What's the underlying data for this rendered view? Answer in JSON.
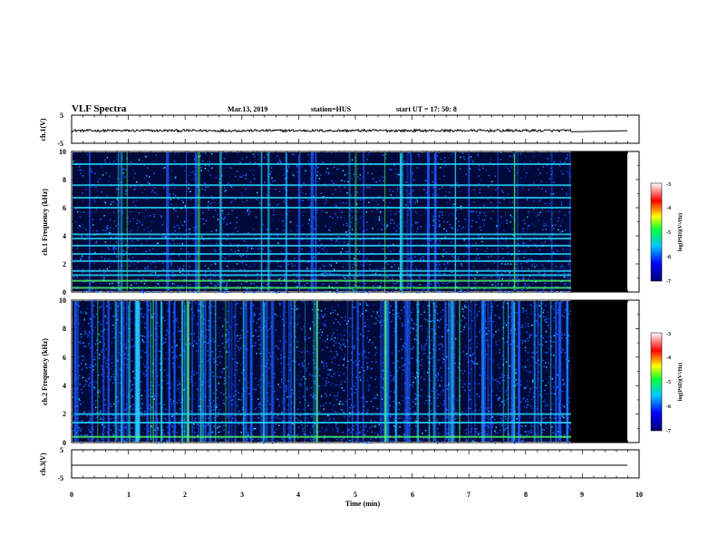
{
  "header": {
    "title": "VLF Spectra",
    "date": "Mar.13, 2019",
    "station": "station=HUS",
    "start": "start  UT  =   17: 50: 8"
  },
  "colors": {
    "low": "#000a3a",
    "mid": "#1a5cff",
    "high": "#27d8ff",
    "peak": "#4dff6a"
  },
  "chart_data": [
    {
      "type": "line",
      "panel": "ch1-voltage",
      "ylabel": "ch.1(V)",
      "ylim": [
        -5,
        5
      ],
      "yticks": [
        "5",
        "-5"
      ],
      "x": [
        0,
        8.83,
        9.83
      ],
      "signal": "noise around -0.5 V up to 8.83 min, flat -0.5 V afterwards"
    },
    {
      "type": "heatmap",
      "panel": "ch1-spectrogram",
      "ylabel": "ch.1 Frequency (kHz)",
      "ylim": [
        0,
        10
      ],
      "yticks": [
        "0",
        "2",
        "4",
        "6",
        "8",
        "10"
      ],
      "data_until_min": 8.83,
      "bands_khz": [
        0.3,
        0.8,
        1.2,
        1.5,
        2.2,
        2.7,
        3.3,
        3.8,
        4.1,
        6.0,
        6.7,
        7.6,
        9.1
      ],
      "colorbar": {
        "label": "log(PSD)(V²/Hz)",
        "ticks": [
          "-3",
          "-4",
          "-5",
          "-6",
          "-7"
        ],
        "range": [
          -7,
          -3
        ]
      }
    },
    {
      "type": "heatmap",
      "panel": "ch2-spectrogram",
      "ylabel": "ch.2 Frequency (kHz)",
      "ylim": [
        0,
        10
      ],
      "yticks": [
        "0",
        "2",
        "4",
        "6",
        "8",
        "10"
      ],
      "data_until_min": 8.83,
      "bands_khz": [
        0.4,
        1.4,
        2.0
      ],
      "colorbar": {
        "label": "log(PSD)(V²/Hz)",
        "ticks": [
          "-3",
          "-4",
          "-5",
          "-6",
          "-7"
        ],
        "range": [
          -7,
          -3
        ]
      }
    },
    {
      "type": "line",
      "panel": "ch3-voltage",
      "ylabel": "ch.3(V)",
      "ylim": [
        -5,
        5
      ],
      "yticks": [
        "5",
        "-5"
      ],
      "signal": "flat near -2 V"
    }
  ],
  "xaxis": {
    "label": "Time  (min)",
    "ticks": [
      "0",
      "1",
      "2",
      "3",
      "4",
      "5",
      "6",
      "7",
      "8",
      "9",
      "10"
    ],
    "range": [
      0,
      10
    ]
  }
}
